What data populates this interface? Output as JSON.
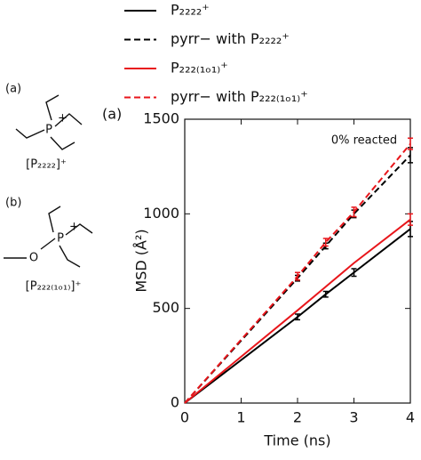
{
  "chart_data": {
    "type": "line",
    "panel_label": "(a)",
    "annotation": "0% reacted",
    "x_label": "Time (ns)",
    "y_label": "MSD (Å²)",
    "x": [
      0,
      2,
      2.5,
      3,
      4
    ],
    "series": [
      {
        "name": "P₂₂₂₂⁺",
        "color": "#000000",
        "dashed": false,
        "values": [
          0,
          455,
          575,
          690,
          920
        ],
        "errors": [
          null,
          15,
          15,
          20,
          40
        ]
      },
      {
        "name": "pyrr− with P₂₂₂₂⁺",
        "color": "#000000",
        "dashed": true,
        "values": [
          0,
          660,
          830,
          1000,
          1310
        ],
        "errors": [
          null,
          15,
          15,
          20,
          40
        ]
      },
      {
        "name": "P₂₂₂₍₁ₒ₁₎⁺",
        "color": "#e8161b",
        "dashed": false,
        "values": [
          0,
          490,
          615,
          740,
          970
        ],
        "errors": [
          null,
          null,
          null,
          null,
          30
        ]
      },
      {
        "name": "pyrr− with P₂₂₂₍₁ₒ₁₎⁺",
        "color": "#e8161b",
        "dashed": true,
        "values": [
          0,
          670,
          850,
          1010,
          1370
        ],
        "errors": [
          null,
          20,
          20,
          25,
          30
        ]
      }
    ],
    "xlim": [
      0,
      4
    ],
    "xticks": [
      0,
      1,
      2,
      3,
      4
    ],
    "ylim": [
      0,
      1500
    ],
    "yticks": [
      0,
      500,
      1000,
      1500
    ]
  },
  "structures": [
    {
      "label": "(a)",
      "atom": "P",
      "charge": "+",
      "name": "[P₂₂₂₂]⁺"
    },
    {
      "label": "(b)",
      "atom": "P",
      "charge": "+",
      "oxygen": "O",
      "name": "[P₂₂₂₍₁ₒ₁₎]⁺"
    }
  ]
}
